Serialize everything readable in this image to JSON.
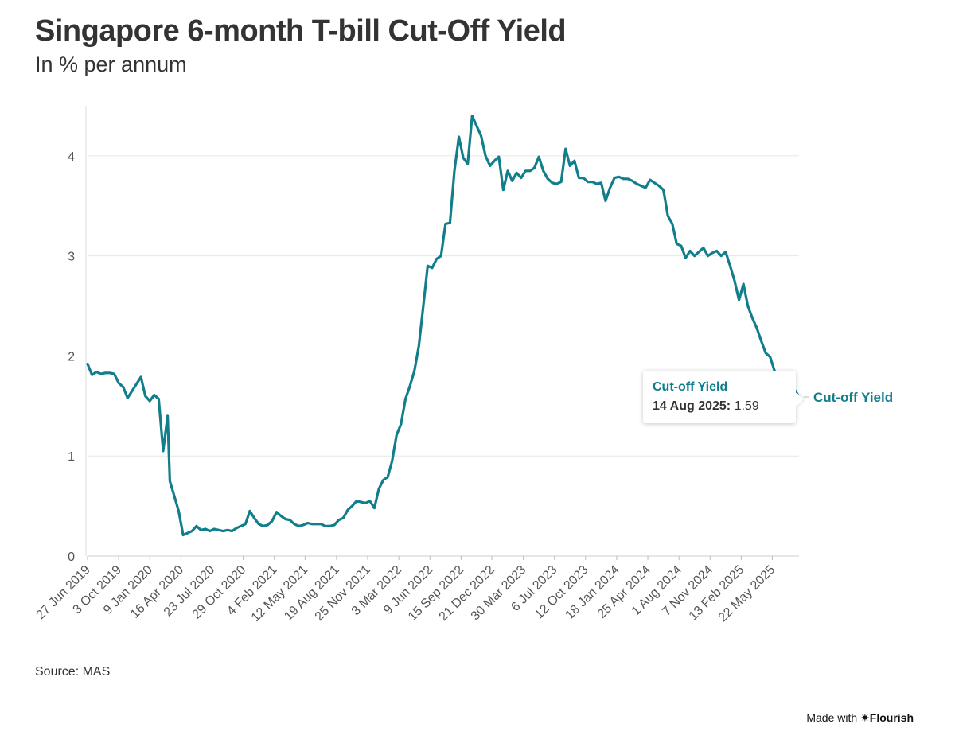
{
  "header": {
    "title": "Singapore 6-month T-bill Cut-Off Yield",
    "subtitle": "In % per annum"
  },
  "footer": {
    "source": "Source: MAS",
    "made_with": "Made with",
    "brand": "✷Flourish"
  },
  "tooltip": {
    "series": "Cut-off Yield",
    "date": "14 Aug 2025:",
    "value": "1.59"
  },
  "colors": {
    "line": "#127e8c",
    "grid": "#e6e6e6",
    "text": "#333333"
  },
  "chart_data": {
    "type": "line",
    "title": "Singapore 6-month T-bill Cut-Off Yield",
    "subtitle": "In % per annum",
    "ylim": [
      0,
      4.5
    ],
    "yticks": [
      0,
      1,
      2,
      3,
      4
    ],
    "xlim": [
      "2019-06-27",
      "2025-08-14"
    ],
    "xtick_labels": [
      {
        "date": "2019-06-27",
        "label": "27 Jun 2019"
      },
      {
        "date": "2019-10-03",
        "label": "3 Oct 2019"
      },
      {
        "date": "2020-01-09",
        "label": "9 Jan 2020"
      },
      {
        "date": "2020-04-16",
        "label": "16 Apr 2020"
      },
      {
        "date": "2020-07-23",
        "label": "23 Jul 2020"
      },
      {
        "date": "2020-10-29",
        "label": "29 Oct 2020"
      },
      {
        "date": "2021-02-04",
        "label": "4 Feb 2021"
      },
      {
        "date": "2021-05-12",
        "label": "12 May 2021"
      },
      {
        "date": "2021-08-19",
        "label": "19 Aug 2021"
      },
      {
        "date": "2021-11-25",
        "label": "25 Nov 2021"
      },
      {
        "date": "2022-03-03",
        "label": "3 Mar 2022"
      },
      {
        "date": "2022-06-09",
        "label": "9 Jun 2022"
      },
      {
        "date": "2022-09-15",
        "label": "15 Sep 2022"
      },
      {
        "date": "2022-12-21",
        "label": "21 Dec 2022"
      },
      {
        "date": "2023-03-30",
        "label": "30 Mar 2023"
      },
      {
        "date": "2023-07-06",
        "label": "6 Jul 2023"
      },
      {
        "date": "2023-10-12",
        "label": "12 Oct 2023"
      },
      {
        "date": "2024-01-18",
        "label": "18 Jan 2024"
      },
      {
        "date": "2024-04-25",
        "label": "25 Apr 2024"
      },
      {
        "date": "2024-08-01",
        "label": "1 Aug 2024"
      },
      {
        "date": "2024-11-07",
        "label": "7 Nov 2024"
      },
      {
        "date": "2025-02-13",
        "label": "13 Feb 2025"
      },
      {
        "date": "2025-05-22",
        "label": "22 May 2025"
      }
    ],
    "grid": true,
    "series": [
      {
        "name": "Cut-off Yield",
        "end_label": "Cut-off Yield",
        "points": [
          [
            "2019-06-27",
            1.92
          ],
          [
            "2019-07-11",
            1.81
          ],
          [
            "2019-07-25",
            1.84
          ],
          [
            "2019-08-08",
            1.82
          ],
          [
            "2019-08-22",
            1.83
          ],
          [
            "2019-09-05",
            1.83
          ],
          [
            "2019-09-19",
            1.82
          ],
          [
            "2019-10-03",
            1.73
          ],
          [
            "2019-10-17",
            1.69
          ],
          [
            "2019-10-31",
            1.58
          ],
          [
            "2019-11-14",
            1.65
          ],
          [
            "2019-11-28",
            1.72
          ],
          [
            "2019-12-12",
            1.79
          ],
          [
            "2019-12-26",
            1.6
          ],
          [
            "2020-01-09",
            1.55
          ],
          [
            "2020-01-23",
            1.61
          ],
          [
            "2020-02-06",
            1.57
          ],
          [
            "2020-02-20",
            1.05
          ],
          [
            "2020-03-05",
            1.4
          ],
          [
            "2020-03-12",
            0.75
          ],
          [
            "2020-03-26",
            0.6
          ],
          [
            "2020-04-09",
            0.45
          ],
          [
            "2020-04-23",
            0.21
          ],
          [
            "2020-05-07",
            0.23
          ],
          [
            "2020-05-21",
            0.25
          ],
          [
            "2020-06-04",
            0.3
          ],
          [
            "2020-06-18",
            0.26
          ],
          [
            "2020-07-02",
            0.27
          ],
          [
            "2020-07-16",
            0.25
          ],
          [
            "2020-07-30",
            0.27
          ],
          [
            "2020-08-13",
            0.26
          ],
          [
            "2020-08-27",
            0.25
          ],
          [
            "2020-09-10",
            0.26
          ],
          [
            "2020-09-24",
            0.25
          ],
          [
            "2020-10-08",
            0.28
          ],
          [
            "2020-10-22",
            0.3
          ],
          [
            "2020-11-05",
            0.32
          ],
          [
            "2020-11-19",
            0.45
          ],
          [
            "2020-12-03",
            0.38
          ],
          [
            "2020-12-17",
            0.32
          ],
          [
            "2020-12-31",
            0.3
          ],
          [
            "2021-01-14",
            0.31
          ],
          [
            "2021-01-28",
            0.35
          ],
          [
            "2021-02-11",
            0.44
          ],
          [
            "2021-02-25",
            0.4
          ],
          [
            "2021-03-11",
            0.37
          ],
          [
            "2021-03-25",
            0.36
          ],
          [
            "2021-04-08",
            0.32
          ],
          [
            "2021-04-22",
            0.3
          ],
          [
            "2021-05-06",
            0.31
          ],
          [
            "2021-05-20",
            0.33
          ],
          [
            "2021-06-03",
            0.32
          ],
          [
            "2021-06-17",
            0.32
          ],
          [
            "2021-07-01",
            0.32
          ],
          [
            "2021-07-15",
            0.3
          ],
          [
            "2021-07-29",
            0.3
          ],
          [
            "2021-08-12",
            0.31
          ],
          [
            "2021-08-26",
            0.36
          ],
          [
            "2021-09-09",
            0.38
          ],
          [
            "2021-09-23",
            0.46
          ],
          [
            "2021-10-07",
            0.5
          ],
          [
            "2021-10-21",
            0.55
          ],
          [
            "2021-11-04",
            0.54
          ],
          [
            "2021-11-18",
            0.53
          ],
          [
            "2021-12-02",
            0.55
          ],
          [
            "2021-12-16",
            0.48
          ],
          [
            "2021-12-30",
            0.67
          ],
          [
            "2022-01-13",
            0.76
          ],
          [
            "2022-01-27",
            0.79
          ],
          [
            "2022-02-10",
            0.95
          ],
          [
            "2022-02-24",
            1.21
          ],
          [
            "2022-03-10",
            1.32
          ],
          [
            "2022-03-24",
            1.57
          ],
          [
            "2022-04-07",
            1.7
          ],
          [
            "2022-04-21",
            1.85
          ],
          [
            "2022-05-05",
            2.1
          ],
          [
            "2022-05-19",
            2.5
          ],
          [
            "2022-06-02",
            2.9
          ],
          [
            "2022-06-16",
            2.88
          ],
          [
            "2022-06-30",
            2.97
          ],
          [
            "2022-07-14",
            3.0
          ],
          [
            "2022-07-28",
            3.32
          ],
          [
            "2022-08-11",
            3.33
          ],
          [
            "2022-08-25",
            3.85
          ],
          [
            "2022-09-08",
            4.19
          ],
          [
            "2022-09-22",
            3.98
          ],
          [
            "2022-10-06",
            3.92
          ],
          [
            "2022-10-20",
            4.4
          ],
          [
            "2022-11-03",
            4.3
          ],
          [
            "2022-11-17",
            4.2
          ],
          [
            "2022-12-01",
            4.0
          ],
          [
            "2022-12-15",
            3.9
          ],
          [
            "2022-12-29",
            3.95
          ],
          [
            "2023-01-12",
            3.99
          ],
          [
            "2023-01-26",
            3.66
          ],
          [
            "2023-02-09",
            3.85
          ],
          [
            "2023-02-23",
            3.75
          ],
          [
            "2023-03-09",
            3.83
          ],
          [
            "2023-03-23",
            3.78
          ],
          [
            "2023-04-06",
            3.85
          ],
          [
            "2023-04-20",
            3.85
          ],
          [
            "2023-05-04",
            3.88
          ],
          [
            "2023-05-18",
            3.99
          ],
          [
            "2023-06-01",
            3.85
          ],
          [
            "2023-06-15",
            3.77
          ],
          [
            "2023-06-29",
            3.73
          ],
          [
            "2023-07-13",
            3.72
          ],
          [
            "2023-07-27",
            3.74
          ],
          [
            "2023-08-10",
            4.07
          ],
          [
            "2023-08-24",
            3.9
          ],
          [
            "2023-09-07",
            3.95
          ],
          [
            "2023-09-21",
            3.78
          ],
          [
            "2023-10-05",
            3.78
          ],
          [
            "2023-10-19",
            3.74
          ],
          [
            "2023-11-02",
            3.74
          ],
          [
            "2023-11-16",
            3.72
          ],
          [
            "2023-11-30",
            3.73
          ],
          [
            "2023-12-14",
            3.55
          ],
          [
            "2023-12-28",
            3.68
          ],
          [
            "2024-01-11",
            3.78
          ],
          [
            "2024-01-25",
            3.79
          ],
          [
            "2024-02-08",
            3.77
          ],
          [
            "2024-02-22",
            3.77
          ],
          [
            "2024-03-07",
            3.75
          ],
          [
            "2024-03-21",
            3.72
          ],
          [
            "2024-04-04",
            3.7
          ],
          [
            "2024-04-18",
            3.68
          ],
          [
            "2024-05-02",
            3.76
          ],
          [
            "2024-05-16",
            3.73
          ],
          [
            "2024-05-30",
            3.7
          ],
          [
            "2024-06-13",
            3.66
          ],
          [
            "2024-06-27",
            3.4
          ],
          [
            "2024-07-11",
            3.32
          ],
          [
            "2024-07-25",
            3.12
          ],
          [
            "2024-08-08",
            3.1
          ],
          [
            "2024-08-22",
            2.98
          ],
          [
            "2024-09-05",
            3.05
          ],
          [
            "2024-09-19",
            3.0
          ],
          [
            "2024-10-03",
            3.04
          ],
          [
            "2024-10-17",
            3.08
          ],
          [
            "2024-10-31",
            3.0
          ],
          [
            "2024-11-14",
            3.03
          ],
          [
            "2024-11-28",
            3.05
          ],
          [
            "2024-12-12",
            3.0
          ],
          [
            "2024-12-26",
            3.04
          ],
          [
            "2025-01-09",
            2.9
          ],
          [
            "2025-01-23",
            2.75
          ],
          [
            "2025-02-06",
            2.56
          ],
          [
            "2025-02-20",
            2.72
          ],
          [
            "2025-03-06",
            2.5
          ],
          [
            "2025-03-20",
            2.38
          ],
          [
            "2025-04-03",
            2.28
          ],
          [
            "2025-04-17",
            2.15
          ],
          [
            "2025-05-01",
            2.03
          ],
          [
            "2025-05-15",
            1.99
          ],
          [
            "2025-05-29",
            1.85
          ],
          [
            "2025-06-12",
            1.79
          ],
          [
            "2025-06-26",
            1.77
          ],
          [
            "2025-07-10",
            1.75
          ],
          [
            "2025-07-24",
            1.7
          ],
          [
            "2025-08-14",
            1.59
          ]
        ]
      }
    ]
  }
}
